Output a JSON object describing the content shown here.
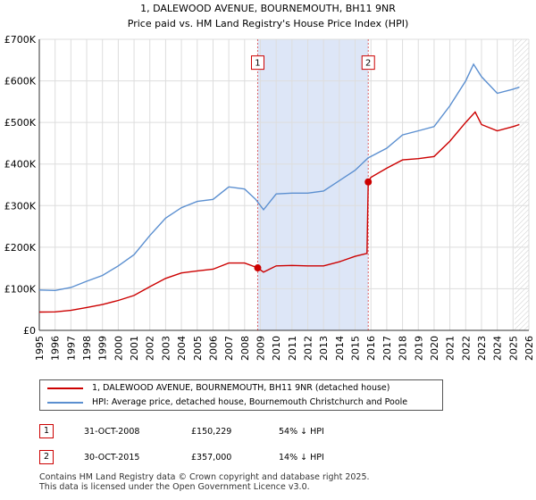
{
  "chart_data": {
    "type": "line",
    "title_line1": "1, DALEWOOD AVENUE, BOURNEMOUTH, BH11 9NR",
    "title_line2": "Price paid vs. HM Land Registry's House Price Index (HPI)",
    "xlim": [
      1995,
      2026
    ],
    "ylim": [
      0,
      700000
    ],
    "y_ticks": [
      0,
      100000,
      200000,
      300000,
      400000,
      500000,
      600000,
      700000
    ],
    "y_tick_labels": [
      "£0",
      "£100K",
      "£200K",
      "£300K",
      "£400K",
      "£500K",
      "£600K",
      "£700K"
    ],
    "x_ticks": [
      1995,
      1996,
      1997,
      1998,
      1999,
      2000,
      2001,
      2002,
      2003,
      2004,
      2005,
      2006,
      2007,
      2008,
      2009,
      2010,
      2011,
      2012,
      2013,
      2014,
      2015,
      2016,
      2017,
      2018,
      2019,
      2020,
      2021,
      2022,
      2023,
      2024,
      2025,
      2026
    ],
    "grid": true,
    "shaded_period": [
      2008.83,
      2015.83
    ],
    "forecast_start": 2025.1,
    "series": [
      {
        "name": "1, DALEWOOD AVENUE, BOURNEMOUTH, BH11 9NR (detached house)",
        "color": "#cc0000",
        "points": [
          [
            1995,
            44000
          ],
          [
            1996,
            44500
          ],
          [
            1997,
            48000
          ],
          [
            1998,
            55000
          ],
          [
            1999,
            62000
          ],
          [
            2000,
            72000
          ],
          [
            2001,
            84000
          ],
          [
            2002,
            105000
          ],
          [
            2003,
            125000
          ],
          [
            2004,
            138000
          ],
          [
            2005,
            143000
          ],
          [
            2006,
            147000
          ],
          [
            2007,
            162000
          ],
          [
            2008,
            162000
          ],
          [
            2008.83,
            150229
          ],
          [
            2009.2,
            140000
          ],
          [
            2010,
            155000
          ],
          [
            2011,
            156000
          ],
          [
            2012,
            155000
          ],
          [
            2013,
            155000
          ],
          [
            2014,
            165000
          ],
          [
            2015,
            178000
          ],
          [
            2015.75,
            185000
          ],
          [
            2015.83,
            357000
          ],
          [
            2016,
            368000
          ],
          [
            2017,
            390000
          ],
          [
            2018,
            410000
          ],
          [
            2019,
            413000
          ],
          [
            2020,
            418000
          ],
          [
            2021,
            455000
          ],
          [
            2022,
            500000
          ],
          [
            2022.6,
            525000
          ],
          [
            2023,
            495000
          ],
          [
            2024,
            480000
          ],
          [
            2025,
            490000
          ],
          [
            2025.4,
            495000
          ]
        ]
      },
      {
        "name": "HPI: Average price, detached house, Bournemouth Christchurch and Poole",
        "color": "#5b8fd0",
        "points": [
          [
            1995,
            97000
          ],
          [
            1996,
            96000
          ],
          [
            1997,
            103000
          ],
          [
            1998,
            118000
          ],
          [
            1999,
            132000
          ],
          [
            2000,
            155000
          ],
          [
            2001,
            182000
          ],
          [
            2002,
            228000
          ],
          [
            2003,
            270000
          ],
          [
            2004,
            295000
          ],
          [
            2005,
            310000
          ],
          [
            2006,
            315000
          ],
          [
            2007,
            345000
          ],
          [
            2008,
            340000
          ],
          [
            2008.7,
            315000
          ],
          [
            2009.2,
            290000
          ],
          [
            2010,
            328000
          ],
          [
            2011,
            330000
          ],
          [
            2012,
            330000
          ],
          [
            2013,
            335000
          ],
          [
            2014,
            360000
          ],
          [
            2015,
            385000
          ],
          [
            2015.83,
            415000
          ],
          [
            2016,
            418000
          ],
          [
            2017,
            438000
          ],
          [
            2018,
            470000
          ],
          [
            2019,
            480000
          ],
          [
            2020,
            490000
          ],
          [
            2021,
            540000
          ],
          [
            2022,
            600000
          ],
          [
            2022.5,
            640000
          ],
          [
            2023,
            610000
          ],
          [
            2024,
            570000
          ],
          [
            2025,
            580000
          ],
          [
            2025.4,
            585000
          ]
        ]
      }
    ],
    "markers": [
      {
        "label": "1",
        "x": 2008.83,
        "y": 150229
      },
      {
        "label": "2",
        "x": 2015.83,
        "y": 357000
      }
    ]
  },
  "legend": {
    "property_label": "1, DALEWOOD AVENUE, BOURNEMOUTH, BH11 9NR (detached house)",
    "hpi_label": "HPI: Average price, detached house, Bournemouth Christchurch and Poole"
  },
  "transactions": [
    {
      "num": "1",
      "date": "31-OCT-2008",
      "price": "£150,229",
      "hpi": "54% ↓ HPI"
    },
    {
      "num": "2",
      "date": "30-OCT-2015",
      "price": "£357,000",
      "hpi": "14% ↓ HPI"
    }
  ],
  "footer": {
    "line1": "Contains HM Land Registry data © Crown copyright and database right 2025.",
    "line2": "This data is licensed under the Open Government Licence v3.0."
  },
  "colors": {
    "property": "#cc0000",
    "hpi": "#5b8fd0",
    "shade": "#dde6f7",
    "grid": "#dddddd"
  }
}
